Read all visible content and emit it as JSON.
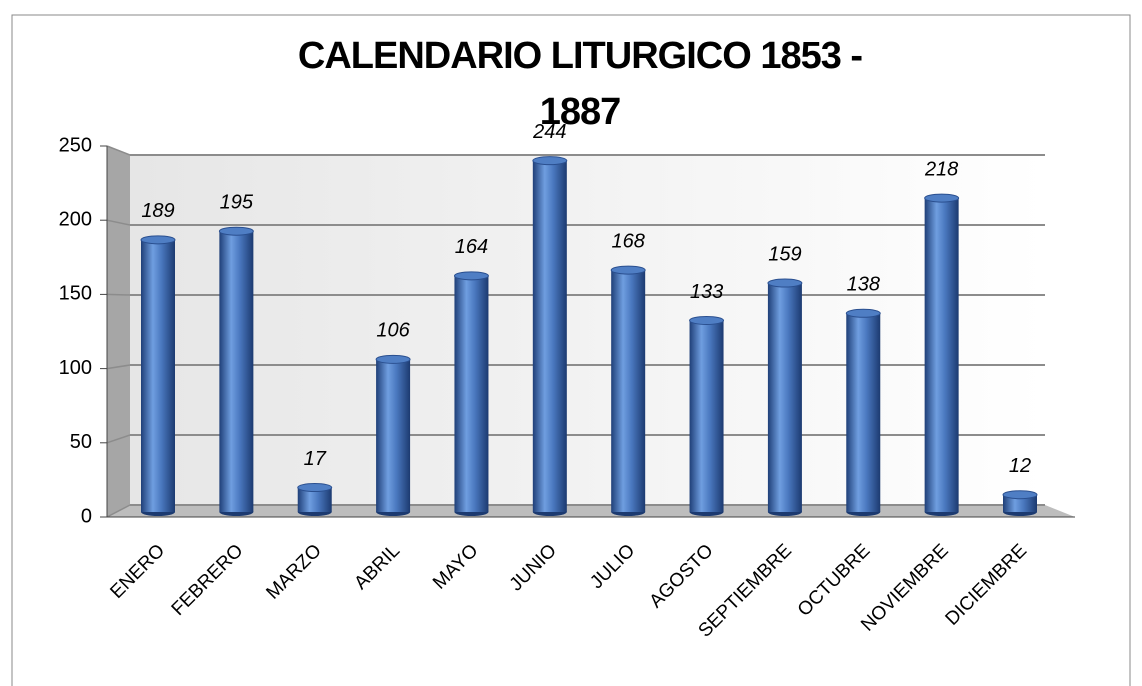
{
  "chart_data": {
    "type": "bar",
    "title": "CALENDARIO LITURGICO 1853 - 1887",
    "categories": [
      "ENERO",
      "FEBRERO",
      "MARZO",
      "ABRIL",
      "MAYO",
      "JUNIO",
      "JULIO",
      "AGOSTO",
      "SEPTIEMBRE",
      "OCTUBRE",
      "NOVIEMBRE",
      "DICIEMBRE"
    ],
    "values": [
      189,
      195,
      17,
      106,
      164,
      244,
      168,
      133,
      159,
      138,
      218,
      12
    ],
    "color": "#4f7ec4",
    "ylim": [
      0,
      250
    ],
    "yticks": [
      0,
      50,
      100,
      150,
      200,
      250
    ],
    "grid": true
  }
}
